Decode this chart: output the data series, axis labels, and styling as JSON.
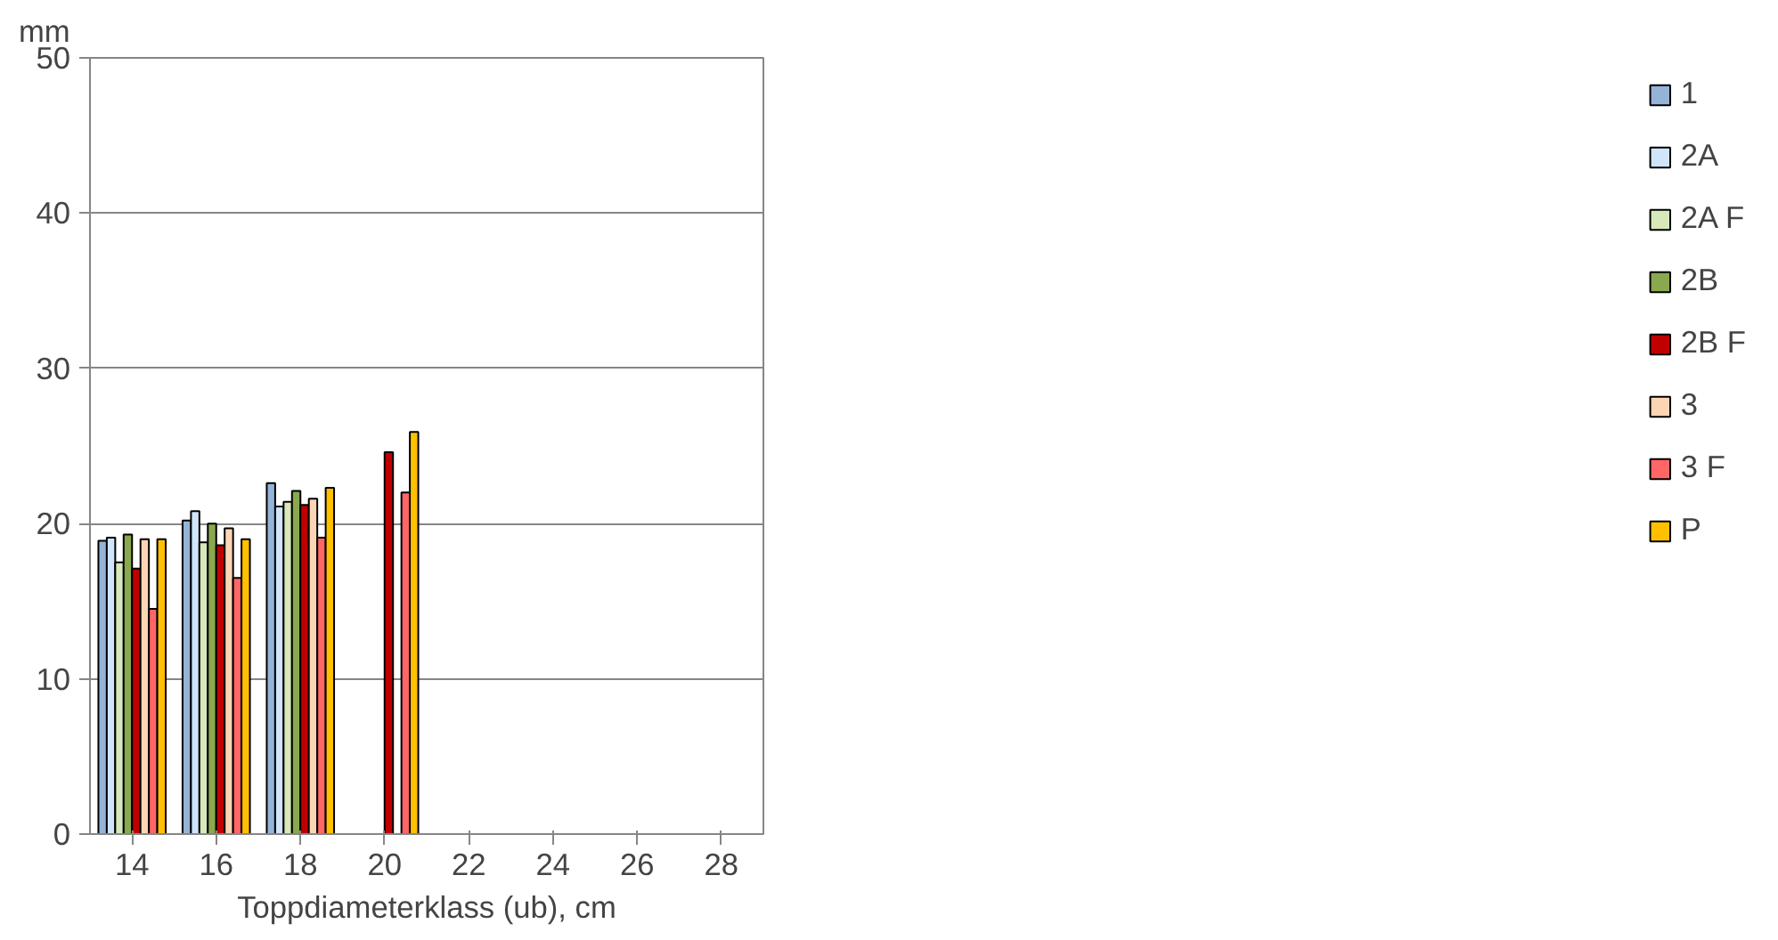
{
  "chart_data": {
    "type": "bar",
    "xlabel": "Toppdiameterklass (ub), cm",
    "ylabel": "mm",
    "categories": [
      "14",
      "16",
      "18",
      "20",
      "22",
      "24",
      "26",
      "28"
    ],
    "ylim": [
      0,
      50
    ],
    "yticks": [
      0,
      10,
      20,
      30,
      40,
      50
    ],
    "grid": "y",
    "legend": "right",
    "series": [
      {
        "name": "1",
        "color": "#95b3d7",
        "values": [
          18.9,
          20.2,
          22.6,
          null,
          null,
          null,
          null,
          null
        ]
      },
      {
        "name": "2A",
        "color": "#d0e4fa",
        "values": [
          19.1,
          20.8,
          21.1,
          null,
          null,
          null,
          null,
          null
        ]
      },
      {
        "name": "2A F",
        "color": "#d7e9bb",
        "values": [
          17.5,
          18.8,
          21.4,
          null,
          null,
          null,
          null,
          null
        ]
      },
      {
        "name": "2B",
        "color": "#8aa84e",
        "values": [
          19.3,
          20.0,
          22.1,
          null,
          null,
          null,
          null,
          null
        ]
      },
      {
        "name": "2B F",
        "color": "#c00000",
        "values": [
          17.1,
          18.6,
          21.2,
          24.6,
          null,
          null,
          null,
          null
        ]
      },
      {
        "name": "3",
        "color": "#fcd5b4",
        "values": [
          19.0,
          19.7,
          21.6,
          null,
          null,
          null,
          null,
          null
        ]
      },
      {
        "name": "3 F",
        "color": "#ff6666",
        "values": [
          14.5,
          16.5,
          19.1,
          22.0,
          null,
          null,
          null,
          null
        ]
      },
      {
        "name": "P",
        "color": "#ffc000",
        "values": [
          19.0,
          19.0,
          22.3,
          25.9,
          null,
          null,
          null,
          null
        ]
      }
    ]
  }
}
